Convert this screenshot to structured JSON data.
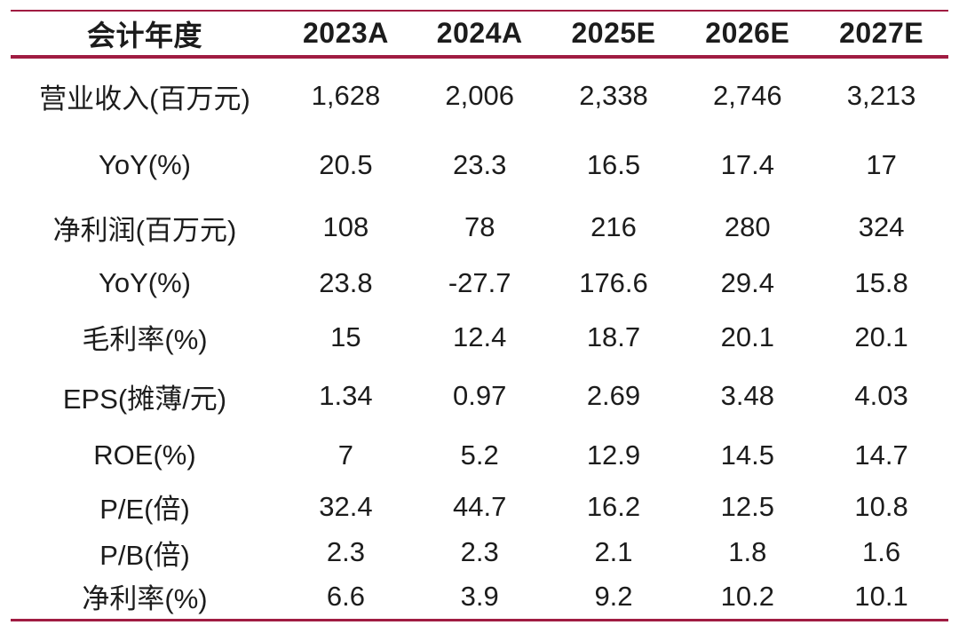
{
  "colors": {
    "rule": "#A01C42",
    "text": "#1C1C1C",
    "background": "#FFFFFF"
  },
  "chart_data": {
    "type": "table",
    "columns": [
      "会计年度",
      "2023A",
      "2024A",
      "2025E",
      "2026E",
      "2027E"
    ],
    "rows": [
      {
        "label": "营业收入(百万元)",
        "values": [
          "1,628",
          "2,006",
          "2,338",
          "2,746",
          "3,213"
        ]
      },
      {
        "label": "YoY(%)",
        "values": [
          "20.5",
          "23.3",
          "16.5",
          "17.4",
          "17"
        ]
      },
      {
        "label": "净利润(百万元)",
        "values": [
          "108",
          "78",
          "216",
          "280",
          "324"
        ]
      },
      {
        "label": "YoY(%)",
        "values": [
          "23.8",
          "-27.7",
          "176.6",
          "29.4",
          "15.8"
        ]
      },
      {
        "label": "毛利率(%)",
        "values": [
          "15",
          "12.4",
          "18.7",
          "20.1",
          "20.1"
        ]
      },
      {
        "label": "EPS(摊薄/元)",
        "values": [
          "1.34",
          "0.97",
          "2.69",
          "3.48",
          "4.03"
        ]
      },
      {
        "label": "ROE(%)",
        "values": [
          "7",
          "5.2",
          "12.9",
          "14.5",
          "14.7"
        ]
      },
      {
        "label": "P/E(倍)",
        "values": [
          "32.4",
          "44.7",
          "16.2",
          "12.5",
          "10.8"
        ]
      },
      {
        "label": "P/B(倍)",
        "values": [
          "2.3",
          "2.3",
          "2.1",
          "1.8",
          "1.6"
        ]
      },
      {
        "label": "净利率(%)",
        "values": [
          "6.6",
          "3.9",
          "9.2",
          "10.2",
          "10.1"
        ]
      }
    ]
  }
}
